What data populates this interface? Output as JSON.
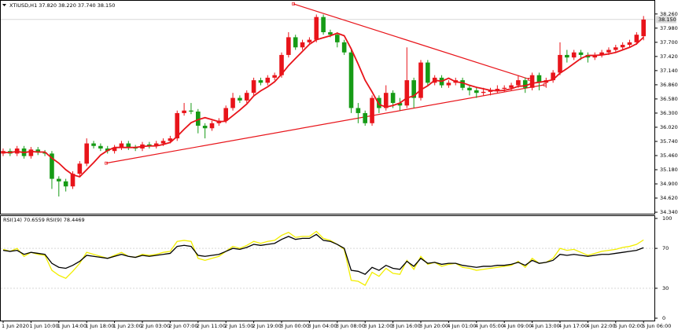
{
  "chart_data": [
    {
      "type": "candlestick",
      "title": "XTIUSD,H1  37.820 38.220 37.740 38.150",
      "categories": [
        "1 Jun 2020",
        null,
        null,
        null,
        "1 Jun 10:00",
        null,
        null,
        null,
        "1 Jun 14:00",
        null,
        null,
        null,
        "1 Jun 18:00",
        null,
        null,
        null,
        "1 Jun 23:00",
        null,
        null,
        null,
        "2 Jun 03:00",
        null,
        null,
        null,
        "2 Jun 07:00",
        null,
        null,
        null,
        "2 Jun 11:00",
        null,
        null,
        null,
        "2 Jun 15:00",
        null,
        null,
        null,
        "2 Jun 19:00",
        null,
        null,
        null,
        "3 Jun 00:00",
        null,
        null,
        null,
        "3 Jun 04:00",
        null,
        null,
        null,
        "3 Jun 08:00",
        null,
        null,
        null,
        "3 Jun 12:00",
        null,
        null,
        null,
        "3 Jun 16:00",
        null,
        null,
        null,
        "3 Jun 20:00",
        null,
        null,
        null,
        "4 Jun 01:00",
        null,
        null,
        null,
        "4 Jun 05:00",
        null,
        null,
        null,
        "4 Jun 09:00",
        null,
        null,
        null,
        "4 Jun 13:00",
        null,
        null,
        null,
        "4 Jun 17:00",
        null,
        null,
        null,
        "4 Jun 22:00",
        null,
        null,
        null,
        "5 Jun 02:00",
        null,
        null,
        null,
        "5 Jun 06:00"
      ],
      "open": [
        35.5,
        35.55,
        35.5,
        35.6,
        35.45,
        35.58,
        35.52,
        35.5,
        35.0,
        34.95,
        34.85,
        35.1,
        35.3,
        35.7,
        35.65,
        35.6,
        35.55,
        35.62,
        35.7,
        35.62,
        35.6,
        35.68,
        35.65,
        35.7,
        35.75,
        35.8,
        36.3,
        36.35,
        36.33,
        36.05,
        36.0,
        36.1,
        36.15,
        36.4,
        36.6,
        36.55,
        36.7,
        36.95,
        36.9,
        37.0,
        37.05,
        37.45,
        37.8,
        37.6,
        37.7,
        37.75,
        38.2,
        37.9,
        37.85,
        37.7,
        37.5,
        36.4,
        36.3,
        36.1,
        36.6,
        36.4,
        36.7,
        36.5,
        36.45,
        36.95,
        36.6,
        37.3,
        36.9,
        37.0,
        36.85,
        36.9,
        36.95,
        36.8,
        36.75,
        36.7,
        36.72,
        36.75,
        36.78,
        36.8,
        36.85,
        36.95,
        36.8,
        37.05,
        36.9,
        36.95,
        37.1,
        37.45,
        37.4,
        37.5,
        37.45,
        37.4,
        37.45,
        37.5,
        37.55,
        37.6,
        37.65,
        37.7,
        37.82
      ],
      "high": [
        35.6,
        35.6,
        35.65,
        35.65,
        35.63,
        35.63,
        35.57,
        35.55,
        35.05,
        35.0,
        35.15,
        35.35,
        35.8,
        35.75,
        35.7,
        35.65,
        35.67,
        35.75,
        35.75,
        35.67,
        35.73,
        35.73,
        35.75,
        35.8,
        35.85,
        36.35,
        36.5,
        36.5,
        36.38,
        36.1,
        36.15,
        36.2,
        36.45,
        36.7,
        36.65,
        36.75,
        37.0,
        37.0,
        37.05,
        37.1,
        37.5,
        37.9,
        37.85,
        37.75,
        37.8,
        38.25,
        38.25,
        37.95,
        37.9,
        37.75,
        37.55,
        36.5,
        36.35,
        36.65,
        36.65,
        36.85,
        36.75,
        36.6,
        37.6,
        37.0,
        37.35,
        37.35,
        37.05,
        37.05,
        36.95,
        37.0,
        37.0,
        36.85,
        36.8,
        36.8,
        36.8,
        36.85,
        36.85,
        36.9,
        37.05,
        37.0,
        37.1,
        37.1,
        37.0,
        37.15,
        37.7,
        37.55,
        37.55,
        37.55,
        37.5,
        37.5,
        37.55,
        37.6,
        37.65,
        37.7,
        37.75,
        37.9,
        38.22
      ],
      "low": [
        35.45,
        35.45,
        35.45,
        35.4,
        35.4,
        35.47,
        35.45,
        34.8,
        34.65,
        34.75,
        34.8,
        35.05,
        35.25,
        35.6,
        35.55,
        35.5,
        35.5,
        35.57,
        35.57,
        35.55,
        35.55,
        35.6,
        35.6,
        35.65,
        35.7,
        35.75,
        36.25,
        36.28,
        35.9,
        35.8,
        35.95,
        36.05,
        36.1,
        36.35,
        36.5,
        36.5,
        36.65,
        36.85,
        36.85,
        36.95,
        37.0,
        37.4,
        37.55,
        37.55,
        37.65,
        37.7,
        37.85,
        37.8,
        37.6,
        37.45,
        36.3,
        36.1,
        36.05,
        36.05,
        36.3,
        36.35,
        36.4,
        36.35,
        36.4,
        36.4,
        36.55,
        36.85,
        36.85,
        36.8,
        36.8,
        36.85,
        36.75,
        36.65,
        36.6,
        36.65,
        36.65,
        36.7,
        36.72,
        36.75,
        36.8,
        36.7,
        36.75,
        36.75,
        36.8,
        36.9,
        37.05,
        37.3,
        37.35,
        37.35,
        37.3,
        37.35,
        37.4,
        37.45,
        37.5,
        37.55,
        37.6,
        37.65,
        37.74
      ],
      "close": [
        35.55,
        35.5,
        35.6,
        35.45,
        35.58,
        35.52,
        35.5,
        35.0,
        34.95,
        34.85,
        35.1,
        35.3,
        35.7,
        35.65,
        35.6,
        35.55,
        35.62,
        35.7,
        35.62,
        35.6,
        35.68,
        35.65,
        35.7,
        35.75,
        35.8,
        36.3,
        36.35,
        36.33,
        36.05,
        36.0,
        36.1,
        36.15,
        36.4,
        36.6,
        36.55,
        36.7,
        36.95,
        36.9,
        37.0,
        37.05,
        37.45,
        37.8,
        37.6,
        37.7,
        37.75,
        38.2,
        37.9,
        37.85,
        37.7,
        37.5,
        36.4,
        36.3,
        36.1,
        36.6,
        36.4,
        36.7,
        36.5,
        36.45,
        36.95,
        36.6,
        37.3,
        36.9,
        37.0,
        36.85,
        36.9,
        36.95,
        36.8,
        36.75,
        36.7,
        36.72,
        36.75,
        36.78,
        36.8,
        36.85,
        36.95,
        36.8,
        37.05,
        36.9,
        36.95,
        37.1,
        37.45,
        37.4,
        37.5,
        37.45,
        37.4,
        37.45,
        37.5,
        37.55,
        37.6,
        37.65,
        37.7,
        37.85,
        38.15
      ],
      "up_color": "#e8141a",
      "down_color": "#169b16",
      "ma": {
        "color": "#e8141a",
        "values": [
          35.52,
          35.52,
          35.54,
          35.52,
          35.54,
          35.53,
          35.53,
          35.41,
          35.31,
          35.18,
          35.08,
          35.04,
          35.18,
          35.32,
          35.47,
          35.56,
          35.62,
          35.62,
          35.62,
          35.62,
          35.64,
          35.65,
          35.65,
          35.68,
          35.72,
          35.84,
          35.98,
          36.11,
          36.17,
          36.21,
          36.17,
          36.13,
          36.14,
          36.25,
          36.36,
          36.48,
          36.64,
          36.74,
          36.82,
          36.92,
          37.07,
          37.24,
          37.38,
          37.52,
          37.66,
          37.75,
          37.79,
          37.83,
          37.88,
          37.83,
          37.57,
          37.27,
          36.95,
          36.72,
          36.47,
          36.42,
          36.45,
          36.5,
          36.6,
          36.64,
          36.76,
          36.84,
          36.95,
          36.93,
          36.99,
          36.92,
          36.9,
          36.85,
          36.81,
          36.78,
          36.75,
          36.74,
          36.75,
          36.78,
          36.83,
          36.84,
          36.89,
          36.91,
          36.93,
          36.96,
          37.09,
          37.18,
          37.28,
          37.38,
          37.44,
          37.44,
          37.45,
          37.47,
          37.5,
          37.55,
          37.6,
          37.67,
          37.8
        ]
      },
      "trendlines": [
        {
          "color": "#e8141a",
          "x": [
            41.7,
            75.6
          ],
          "y": [
            38.46,
            36.97
          ]
        },
        {
          "color": "#e8141a",
          "x": [
            14.8,
            77.8
          ],
          "y": [
            35.31,
            36.86
          ]
        }
      ],
      "last_price": {
        "value": 38.15,
        "label": "38.150"
      },
      "ylim": [
        34.31,
        38.49
      ],
      "yticks": [
        {
          "value": 34.34,
          "label": "34.340"
        },
        {
          "value": 34.62,
          "label": "34.620"
        },
        {
          "value": 34.9,
          "label": "34.900"
        },
        {
          "value": 35.18,
          "label": "35.180"
        },
        {
          "value": 35.46,
          "label": "35.460"
        },
        {
          "value": 35.74,
          "label": "35.740"
        },
        {
          "value": 36.02,
          "label": "36.020"
        },
        {
          "value": 36.3,
          "label": "36.300"
        },
        {
          "value": 36.58,
          "label": "36.580"
        },
        {
          "value": 36.86,
          "label": "36.860"
        },
        {
          "value": 37.14,
          "label": "37.140"
        },
        {
          "value": 37.42,
          "label": "37.420"
        },
        {
          "value": 37.7,
          "label": "37.700"
        },
        {
          "value": 37.98,
          "label": "37.980"
        },
        {
          "value": 38.26,
          "label": "38.260"
        }
      ]
    },
    {
      "type": "line",
      "title": "RSI(14) 70.6559  RSI(9) 78.4469",
      "series": [
        {
          "color": "#000000",
          "values": [
            68,
            67,
            68,
            64,
            66,
            65,
            64,
            55,
            51,
            50,
            53,
            57,
            63,
            62,
            61,
            60,
            62,
            64,
            62,
            61,
            63,
            62,
            63,
            64,
            65,
            72,
            73,
            72,
            63,
            62,
            63,
            64,
            67,
            70,
            69,
            71,
            74,
            73,
            74,
            75,
            79,
            82,
            79,
            80,
            80,
            84,
            78,
            77,
            74,
            70,
            48,
            47,
            44,
            51,
            48,
            53,
            50,
            49,
            57,
            52,
            60,
            55,
            56,
            54,
            55,
            55,
            53,
            52,
            51,
            52,
            52,
            53,
            53,
            54,
            56,
            53,
            58,
            55,
            56,
            58,
            64,
            63,
            64,
            63,
            62,
            63,
            64,
            64,
            65,
            66,
            67,
            68,
            70.6559
          ]
        },
        {
          "color": "#f2ee00",
          "values": [
            69,
            67,
            70,
            62,
            66,
            64,
            63,
            48,
            43,
            40,
            47,
            55,
            66,
            64,
            62,
            60,
            63,
            66,
            62,
            61,
            64,
            63,
            64,
            66,
            67,
            77,
            78,
            77,
            60,
            58,
            60,
            62,
            67,
            72,
            70,
            73,
            77,
            75,
            77,
            78,
            83,
            86,
            81,
            82,
            82,
            87,
            80,
            78,
            74,
            69,
            38,
            37,
            33,
            46,
            42,
            50,
            45,
            44,
            58,
            49,
            62,
            54,
            56,
            52,
            54,
            55,
            51,
            50,
            48,
            49,
            50,
            51,
            52,
            53,
            57,
            51,
            60,
            55,
            56,
            60,
            70,
            68,
            69,
            66,
            63,
            65,
            67,
            68,
            69,
            71,
            72,
            74,
            78.4469
          ]
        }
      ],
      "ylim": [
        0,
        100
      ],
      "yticks": [
        0,
        30,
        70,
        100
      ],
      "levels": [
        30,
        70
      ]
    }
  ]
}
